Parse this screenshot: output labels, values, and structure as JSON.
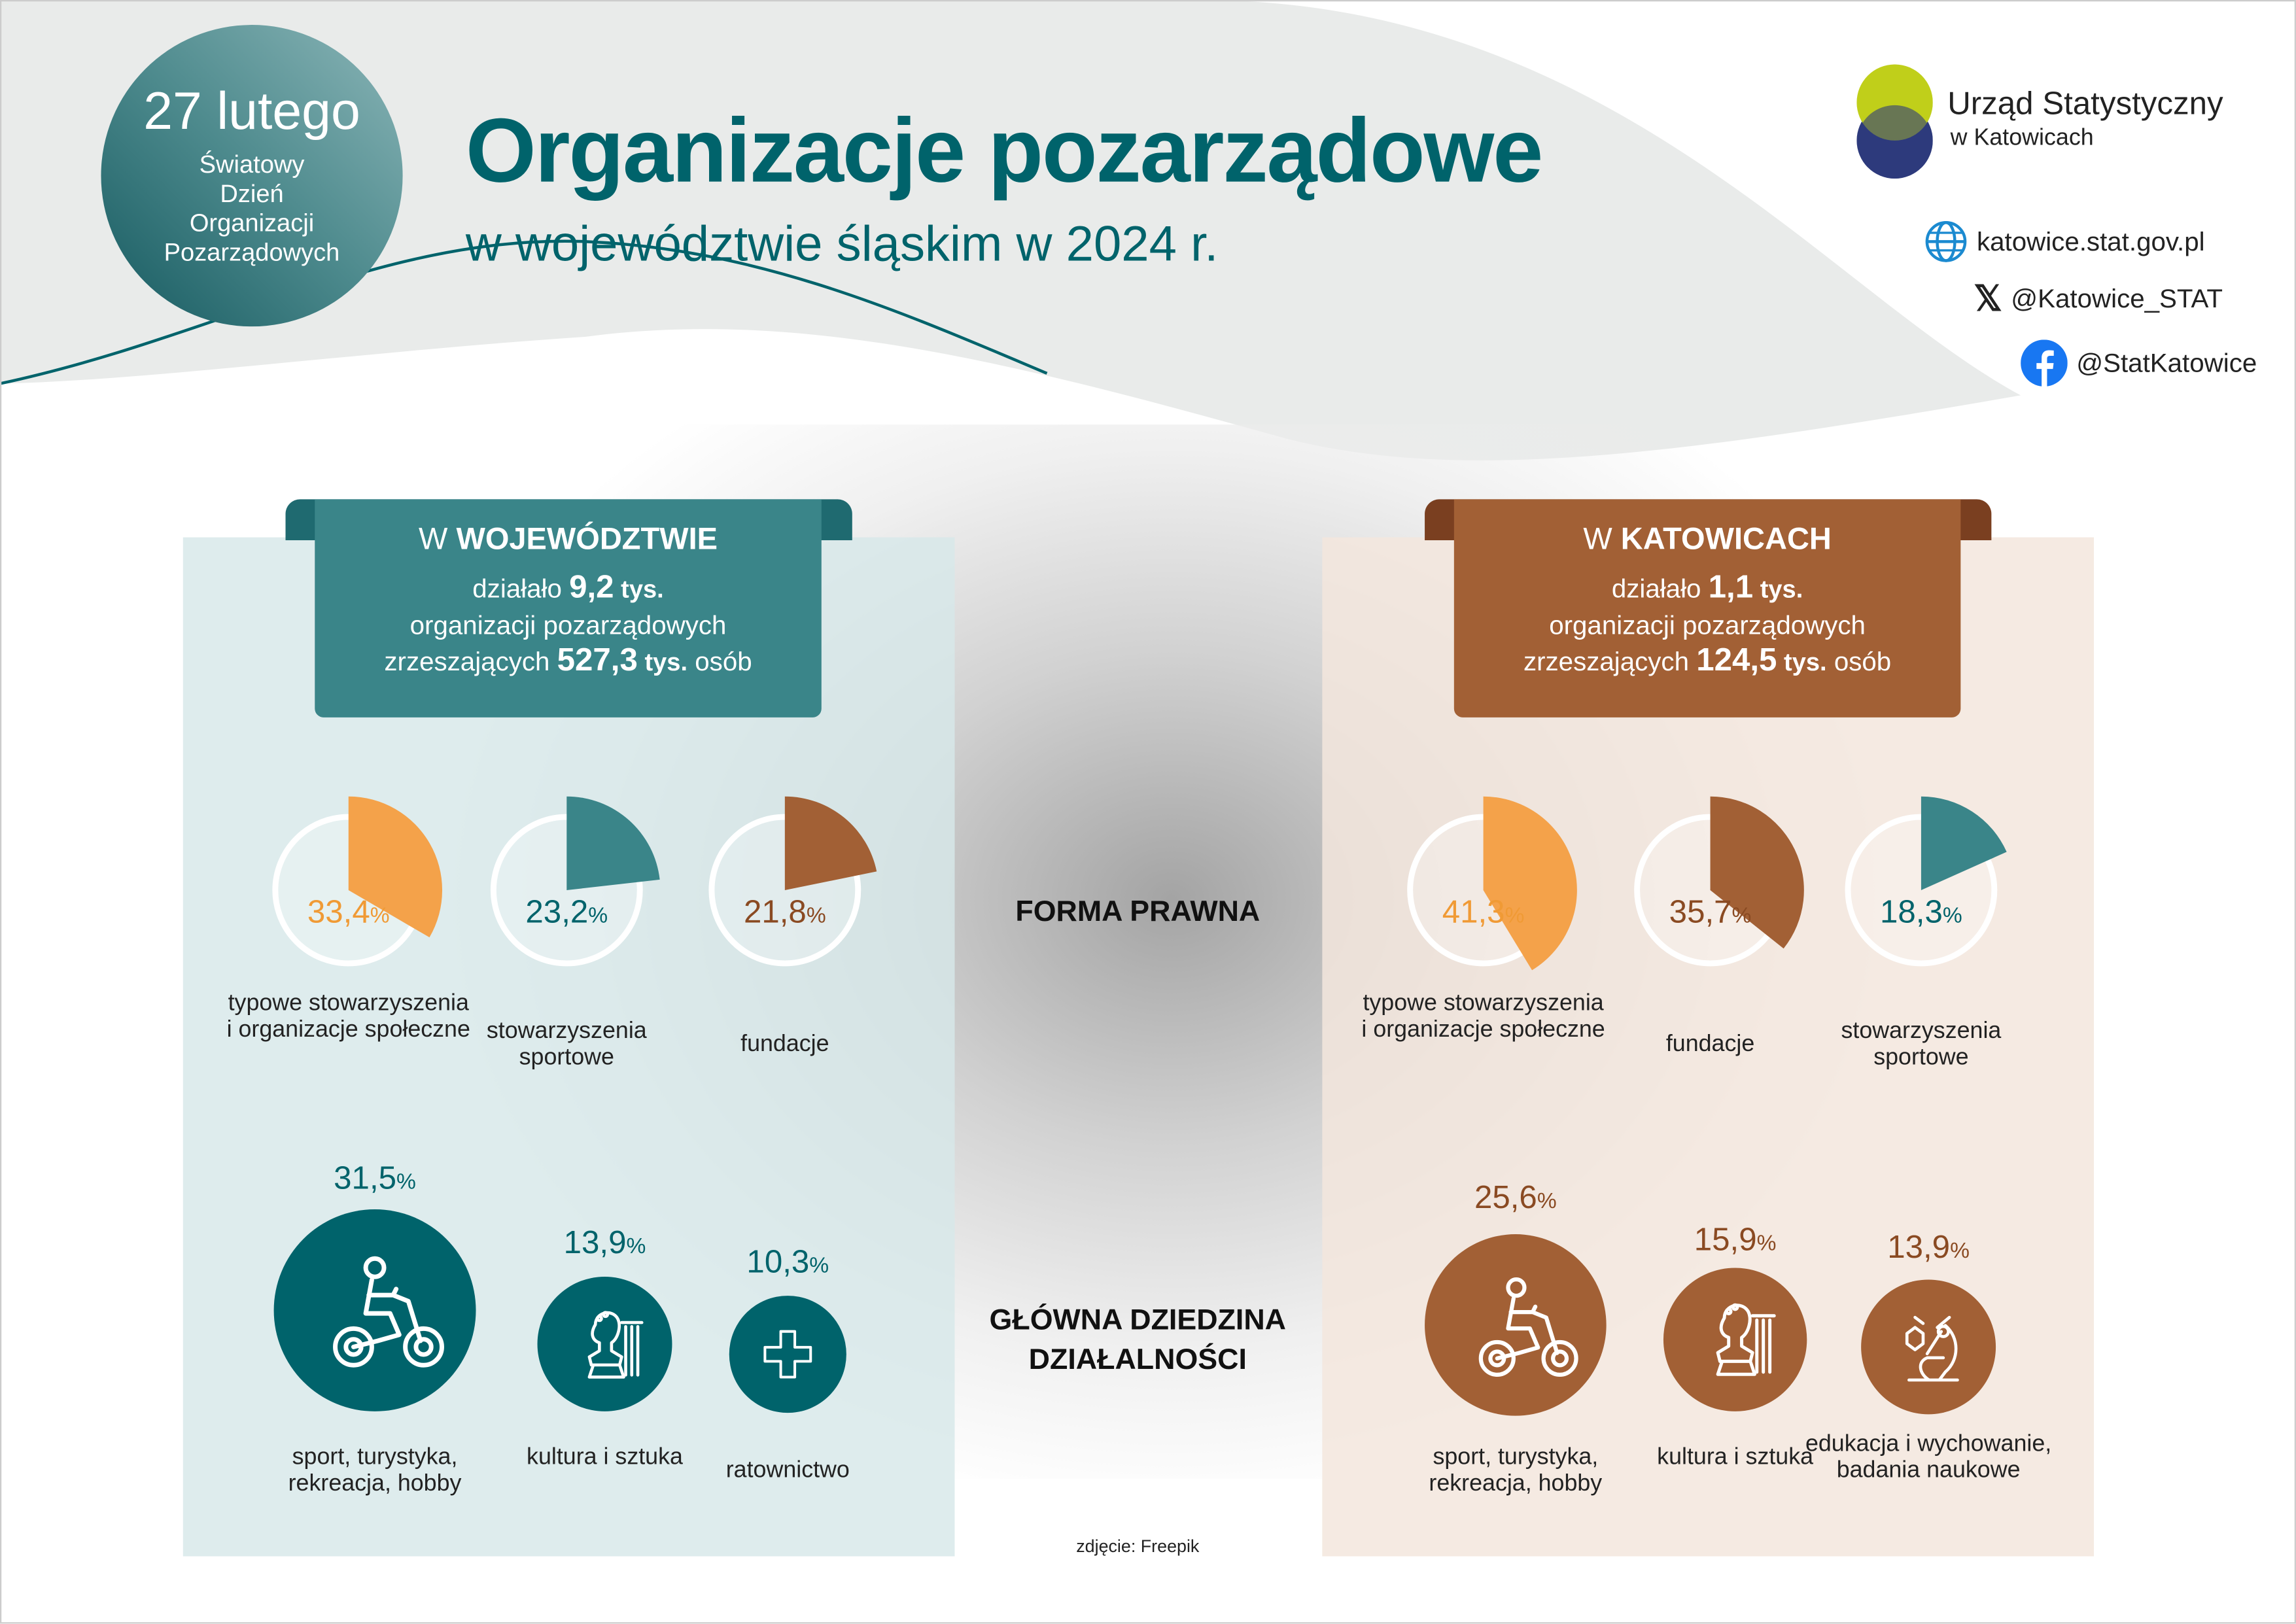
{
  "badge": {
    "date": "27 lutego",
    "line1": "Światowy",
    "line2": "Dzień",
    "line3": "Organizacji",
    "line4": "Pozarządowych"
  },
  "header": {
    "title": "Organizacje pozarządowe",
    "subtitle": "w województwie śląskim w 2024 r."
  },
  "logo": {
    "name": "Urząd Statystyczny",
    "city": "w Katowicach"
  },
  "social": {
    "web": "katowice.stat.gov.pl",
    "x": "@Katowice_STAT",
    "facebook": "@StatKatowice"
  },
  "center": {
    "forma": "FORMA PRAWNA",
    "dziedzina1": "GŁÓWNA DZIEDZINA",
    "dziedzina2": "DZIAŁALNOŚCI",
    "credit": "zdjęcie: Freepik"
  },
  "left": {
    "title_pre": "W ",
    "title_bold": "WOJEWÓDZTWIE",
    "l1_pre": "działało ",
    "l1_num": "9,2",
    "l1_unit": " tys.",
    "l2": "organizacji pozarządowych",
    "l3_pre": "zrzeszających ",
    "l3_num": "527,3",
    "l3_unit": " tys.",
    "l3_post": " osób"
  },
  "right": {
    "title_pre": "W ",
    "title_bold": "KATOWICACH",
    "l1_pre": "działało ",
    "l1_num": "1,1",
    "l1_unit": " tys.",
    "l2": "organizacji pozarządowych",
    "l3_pre": "zrzeszających ",
    "l3_num": "124,5",
    "l3_unit": " tys.",
    "l3_post": " osób"
  },
  "colors": {
    "teal": "#00636b",
    "teal_mid": "#3a8589",
    "orange": "#f4a24a",
    "brown": "#a26035",
    "brown_dark": "#7a3f20"
  },
  "chart_data": [
    {
      "type": "pie",
      "title": "FORMA PRAWNA",
      "region": "W WOJEWÓDZTWIE",
      "categories": [
        "typowe stowarzyszenia i organizacje społeczne",
        "stowarzyszenia sportowe",
        "fundacje"
      ],
      "values": [
        33.4,
        23.2,
        21.8
      ],
      "labels": [
        "33,4",
        "23,2",
        "21,8"
      ],
      "colors": [
        "#f4a24a",
        "#3a8589",
        "#a26035"
      ]
    },
    {
      "type": "pie",
      "title": "FORMA PRAWNA",
      "region": "W KATOWICACH",
      "categories": [
        "typowe stowarzyszenia i organizacje społeczne",
        "fundacje",
        "stowarzyszenia sportowe"
      ],
      "values": [
        41.3,
        35.7,
        18.3
      ],
      "labels": [
        "41,3",
        "35,7",
        "18,3"
      ],
      "colors": [
        "#f4a24a",
        "#a26035",
        "#3a8589"
      ]
    },
    {
      "type": "bubble",
      "title": "GŁÓWNA DZIEDZINA DZIAŁALNOŚCI",
      "region": "W WOJEWÓDZTWIE",
      "categories": [
        "sport, turystyka, rekreacja, hobby",
        "kultura i sztuka",
        "ratownictwo"
      ],
      "values": [
        31.5,
        13.9,
        10.3
      ],
      "labels": [
        "31,5",
        "13,9",
        "10,3"
      ],
      "icons": [
        "cyclist-icon",
        "bust-icon",
        "cross-icon"
      ]
    },
    {
      "type": "bubble",
      "title": "GŁÓWNA DZIEDZINA DZIAŁALNOŚCI",
      "region": "W KATOWICACH",
      "categories": [
        "sport, turystyka, rekreacja, hobby",
        "kultura i sztuka",
        "edukacja i wychowanie, badania naukowe"
      ],
      "values": [
        25.6,
        15.9,
        13.9
      ],
      "labels": [
        "25,6",
        "15,9",
        "13,9"
      ],
      "icons": [
        "cyclist-icon",
        "bust-icon",
        "microscope-icon"
      ]
    }
  ],
  "pct_sign": "%"
}
